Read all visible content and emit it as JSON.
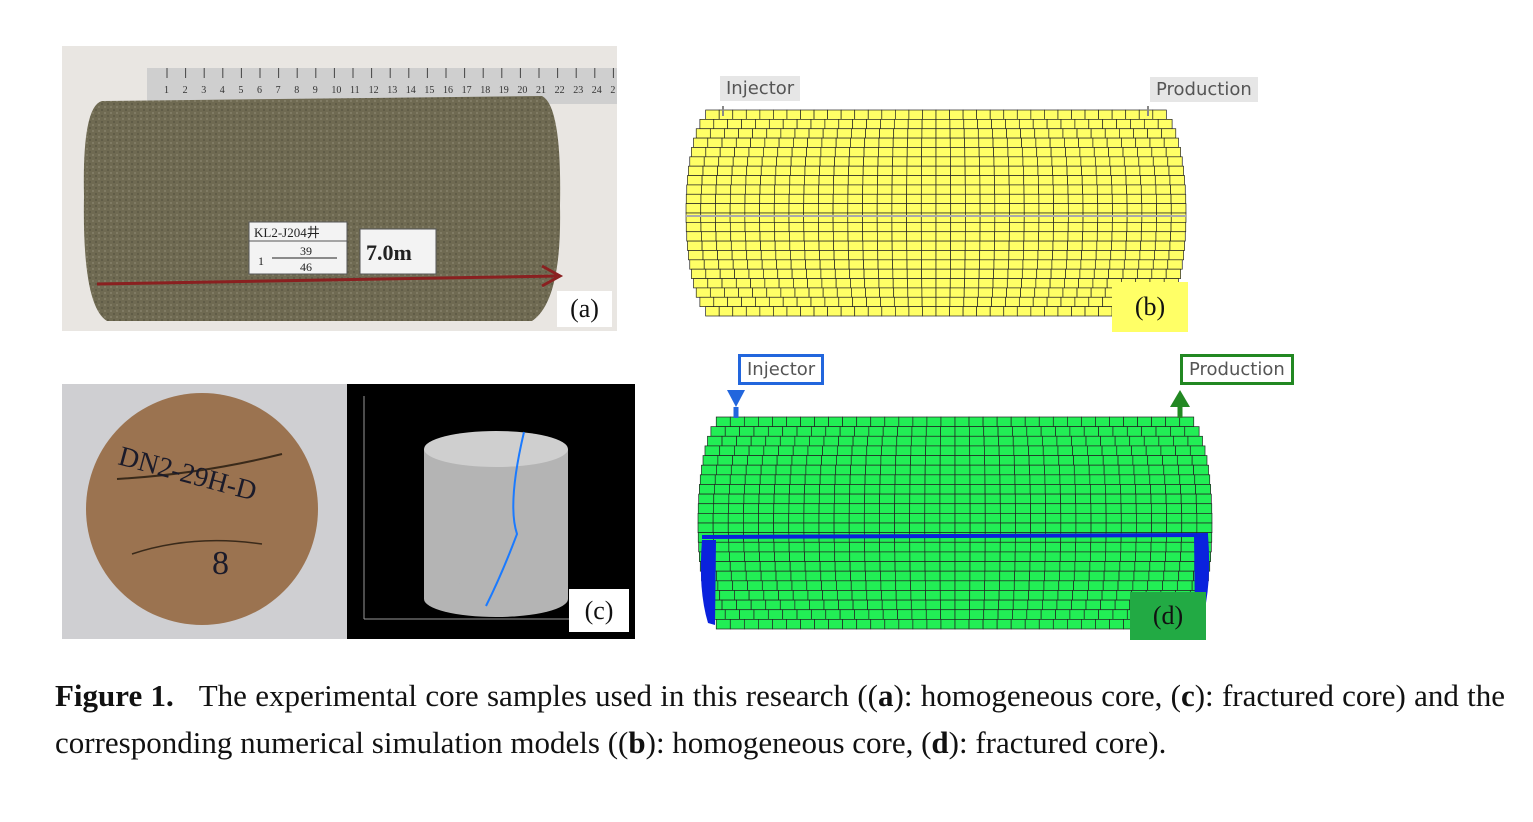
{
  "figure": {
    "panel_a": {
      "label": "(a)",
      "ruler_numbers": [
        "1",
        "2",
        "3",
        "4",
        "5",
        "6",
        "7",
        "8",
        "9",
        "10",
        "11",
        "12",
        "13",
        "14",
        "15",
        "16",
        "17",
        "18",
        "19",
        "20",
        "21",
        "22",
        "23",
        "24",
        "2"
      ],
      "sample_tag_top": "KL2-J204井",
      "sample_tag_num": "1",
      "sample_tag_frac_top": "39",
      "sample_tag_frac_bottom": "46",
      "depth_tag": "7.0m"
    },
    "panel_b": {
      "label": "(b)",
      "injector_label": "Injector",
      "production_label": "Production",
      "grid_color": "#ffff66"
    },
    "panel_c": {
      "label": "(c)",
      "core_writing_1": "DN2-29H-D",
      "core_writing_2": "8"
    },
    "panel_d": {
      "label": "(d)",
      "injector_label": "Injector",
      "production_label": "Production",
      "grid_color": "#22ee55",
      "fracture_color": "#0a22dd"
    }
  },
  "caption": {
    "prefix": "Figure 1.",
    "text_1": "The experimental core samples used in this research ((",
    "a": "a",
    "text_2": "): homogeneous core, (",
    "c": "c",
    "text_3": "): fractured core) and the corresponding numerical simulation models ((",
    "b": "b",
    "text_4": "): homogeneous core, (",
    "d": "d",
    "text_5": "): fractured core)."
  }
}
